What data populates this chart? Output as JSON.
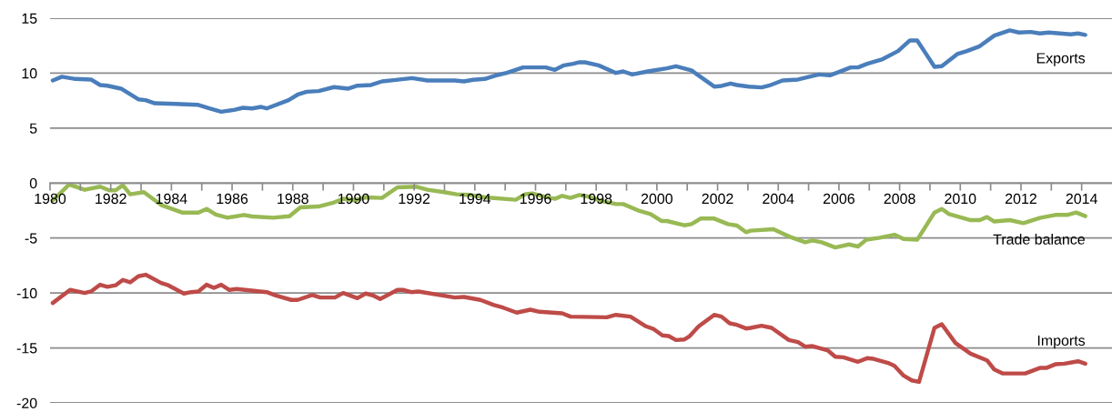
{
  "chart_data": {
    "type": "line",
    "xlim": [
      1980,
      2015
    ],
    "ylim": [
      -20,
      15
    ],
    "yticks": [
      -20,
      -15,
      -10,
      -5,
      0,
      5,
      10,
      15
    ],
    "xticks": [
      1980,
      {
        "value": 1981,
        "label": null
      },
      1982,
      {
        "value": 1983,
        "label": null
      },
      1984,
      {
        "value": 1985,
        "label": null
      },
      1986,
      {
        "value": 1987,
        "label": null
      },
      1988,
      {
        "value": 1989,
        "label": null
      },
      1990,
      {
        "value": 1991,
        "label": null
      },
      1992,
      {
        "value": 1993,
        "label": null
      },
      1994,
      {
        "value": 1995,
        "label": null
      },
      1996,
      {
        "value": 1997,
        "label": null
      },
      1998,
      {
        "value": 1999,
        "label": null
      },
      2000,
      {
        "value": 2001,
        "label": null
      },
      2002,
      {
        "value": 2003,
        "label": null
      },
      2004,
      {
        "value": 2005,
        "label": null
      },
      2006,
      {
        "value": 2007,
        "label": null
      },
      2008,
      {
        "value": 2009,
        "label": null
      },
      2010,
      {
        "value": 2011,
        "label": null
      },
      2012,
      {
        "value": 2013,
        "label": null
      },
      2014
    ],
    "grid": "y",
    "legend": false,
    "marker": "none",
    "line_style": "solid",
    "series": [
      {
        "name": "Exports",
        "color": "#4a7ebb",
        "x": [
          1980.09,
          1980.39,
          1980.84,
          1981.35,
          1981.65,
          1981.89,
          1982.34,
          1982.91,
          1983.15,
          1983.45,
          1984.14,
          1984.86,
          1985.25,
          1985.64,
          1986.06,
          1986.36,
          1986.66,
          1986.96,
          1987.14,
          1987.86,
          1988.19,
          1988.46,
          1988.85,
          1989.36,
          1989.83,
          1990.13,
          1990.58,
          1990.94,
          1991.33,
          1991.93,
          1992.44,
          1993.34,
          1993.64,
          1993.94,
          1994.33,
          1994.75,
          1995.05,
          1995.59,
          1996.34,
          1996.64,
          1996.94,
          1997.24,
          1997.45,
          1997.63,
          1998.08,
          1998.65,
          1998.89,
          1999.19,
          1999.7,
          2000.33,
          2000.63,
          2001.14,
          2001.89,
          2002.13,
          2002.43,
          2002.64,
          2003.03,
          2003.45,
          2003.69,
          2004.14,
          2004.65,
          2005.34,
          2005.7,
          2006.0,
          2006.39,
          2006.63,
          2006.93,
          2007.44,
          2007.95,
          2008.34,
          2008.58,
          2009.15,
          2009.39,
          2009.9,
          2010.22,
          2010.64,
          2011.12,
          2011.63,
          2011.93,
          2012.32,
          2012.62,
          2012.92,
          2013.64,
          2013.88,
          2014.12
        ],
        "values": [
          9.33,
          9.67,
          9.47,
          9.42,
          8.92,
          8.86,
          8.59,
          7.62,
          7.54,
          7.26,
          7.2,
          7.12,
          6.79,
          6.49,
          6.65,
          6.85,
          6.79,
          6.93,
          6.79,
          7.54,
          8.09,
          8.31,
          8.37,
          8.73,
          8.59,
          8.86,
          8.92,
          9.25,
          9.36,
          9.55,
          9.33,
          9.33,
          9.25,
          9.39,
          9.47,
          9.83,
          10.02,
          10.52,
          10.52,
          10.3,
          10.71,
          10.85,
          10.99,
          10.99,
          10.71,
          10.02,
          10.16,
          9.88,
          10.16,
          10.44,
          10.63,
          10.25,
          8.78,
          8.84,
          9.06,
          8.92,
          8.78,
          8.7,
          8.86,
          9.33,
          9.42,
          9.88,
          9.8,
          10.11,
          10.52,
          10.52,
          10.85,
          11.27,
          12.01,
          12.98,
          12.98,
          10.58,
          10.63,
          11.74,
          12.01,
          12.45,
          13.42,
          13.89,
          13.7,
          13.75,
          13.61,
          13.7,
          13.53,
          13.61,
          13.48
        ]
      },
      {
        "name": "Trade balance",
        "color": "#98b954",
        "x": [
          1980.09,
          1980.63,
          1981.14,
          1981.65,
          1981.95,
          1982.16,
          1982.4,
          1982.64,
          1983.09,
          1983.66,
          1984.35,
          1984.89,
          1985.16,
          1985.46,
          1985.85,
          1986.39,
          1986.66,
          1987.35,
          1987.89,
          1988.25,
          1988.85,
          1989.36,
          1989.66,
          1990.04,
          1990.4,
          1990.94,
          1991.45,
          1992.08,
          1992.44,
          1992.98,
          1993.4,
          1993.85,
          1994.33,
          1995.35,
          1995.65,
          1995.89,
          1996.19,
          1996.64,
          1996.88,
          1997.15,
          1997.45,
          1997.75,
          1998.23,
          1998.65,
          1998.89,
          1999.43,
          1999.79,
          2000.15,
          2000.33,
          2000.9,
          2001.14,
          2001.44,
          2001.89,
          2002.34,
          2002.64,
          2002.94,
          2003.09,
          2003.84,
          2004.38,
          2004.89,
          2005.13,
          2005.43,
          2005.88,
          2006.33,
          2006.63,
          2006.9,
          2007.35,
          2007.83,
          2008.13,
          2008.58,
          2009.15,
          2009.39,
          2009.63,
          2010.34,
          2010.64,
          2010.88,
          2011.12,
          2011.63,
          2012.08,
          2012.62,
          2013.13,
          2013.52,
          2013.82,
          2014.12
        ],
        "values": [
          -1.57,
          -0.14,
          -0.61,
          -0.33,
          -0.66,
          -0.66,
          -0.19,
          -1.02,
          -0.83,
          -1.99,
          -2.68,
          -2.68,
          -2.35,
          -2.87,
          -3.15,
          -2.9,
          -3.04,
          -3.15,
          -3.01,
          -2.21,
          -2.13,
          -1.76,
          -1.43,
          -1.57,
          -1.3,
          -1.35,
          -0.39,
          -0.33,
          -0.61,
          -0.83,
          -1.02,
          -1.08,
          -1.3,
          -1.52,
          -1.02,
          -0.94,
          -1.16,
          -1.43,
          -1.16,
          -1.35,
          -1.08,
          -1.24,
          -1.66,
          -1.91,
          -1.91,
          -2.54,
          -2.82,
          -3.45,
          -3.45,
          -3.84,
          -3.73,
          -3.23,
          -3.23,
          -3.73,
          -3.87,
          -4.47,
          -4.33,
          -4.2,
          -4.89,
          -5.39,
          -5.22,
          -5.39,
          -5.86,
          -5.58,
          -5.77,
          -5.16,
          -4.97,
          -4.7,
          -5.08,
          -5.16,
          -2.68,
          -2.35,
          -2.82,
          -3.37,
          -3.37,
          -3.09,
          -3.5,
          -3.37,
          -3.65,
          -3.17,
          -2.9,
          -2.9,
          -2.68,
          -3.01
        ]
      },
      {
        "name": "Imports",
        "color": "#be4b48",
        "x": [
          1980.09,
          1980.66,
          1981.14,
          1981.35,
          1981.65,
          1981.89,
          1982.16,
          1982.4,
          1982.64,
          1982.91,
          1983.15,
          1983.66,
          1983.9,
          1984.41,
          1984.65,
          1984.89,
          1985.16,
          1985.4,
          1985.64,
          1985.91,
          1986.15,
          1987.14,
          1987.44,
          1987.95,
          1988.16,
          1988.64,
          1988.91,
          1989.39,
          1989.66,
          1990.13,
          1990.4,
          1990.64,
          1990.88,
          1991.45,
          1991.63,
          1991.9,
          1992.14,
          1993.34,
          1993.64,
          1994.18,
          1994.63,
          1994.93,
          1995.38,
          1995.83,
          1996.13,
          1996.88,
          1997.15,
          1998.35,
          1998.65,
          1999.13,
          1999.64,
          1999.88,
          2000.18,
          2000.39,
          2000.63,
          2000.9,
          2001.08,
          2001.38,
          2001.89,
          2002.13,
          2002.4,
          2002.64,
          2002.94,
          2003.09,
          2003.45,
          2003.78,
          2004.35,
          2004.65,
          2004.89,
          2005.13,
          2005.64,
          2005.88,
          2006.15,
          2006.63,
          2006.93,
          2007.14,
          2007.65,
          2007.83,
          2008.13,
          2008.4,
          2008.64,
          2009.15,
          2009.39,
          2009.84,
          2010.34,
          2010.88,
          2011.12,
          2011.39,
          2012.14,
          2012.62,
          2012.83,
          2013.13,
          2013.43,
          2013.88,
          2014.12
        ],
        "values": [
          -10.91,
          -9.72,
          -10.0,
          -9.86,
          -9.25,
          -9.44,
          -9.3,
          -8.81,
          -9.03,
          -8.48,
          -8.34,
          -9.09,
          -9.3,
          -10.05,
          -9.92,
          -9.86,
          -9.25,
          -9.53,
          -9.25,
          -9.72,
          -9.64,
          -9.92,
          -10.22,
          -10.63,
          -10.63,
          -10.19,
          -10.41,
          -10.41,
          -10.0,
          -10.47,
          -10.05,
          -10.22,
          -10.55,
          -9.72,
          -9.72,
          -9.92,
          -9.86,
          -10.41,
          -10.36,
          -10.63,
          -11.1,
          -11.33,
          -11.79,
          -11.52,
          -11.71,
          -11.85,
          -12.15,
          -12.21,
          -11.99,
          -12.15,
          -13.03,
          -13.26,
          -13.86,
          -13.92,
          -14.28,
          -14.23,
          -13.92,
          -13.03,
          -11.99,
          -12.15,
          -12.76,
          -12.9,
          -13.23,
          -13.17,
          -12.98,
          -13.17,
          -14.28,
          -14.47,
          -14.89,
          -14.83,
          -15.24,
          -15.8,
          -15.85,
          -16.26,
          -15.93,
          -15.99,
          -16.4,
          -16.63,
          -17.51,
          -17.95,
          -18.09,
          -13.17,
          -12.84,
          -14.55,
          -15.52,
          -16.13,
          -16.96,
          -17.32,
          -17.32,
          -16.82,
          -16.82,
          -16.49,
          -16.43,
          -16.21,
          -16.43
        ]
      }
    ]
  }
}
